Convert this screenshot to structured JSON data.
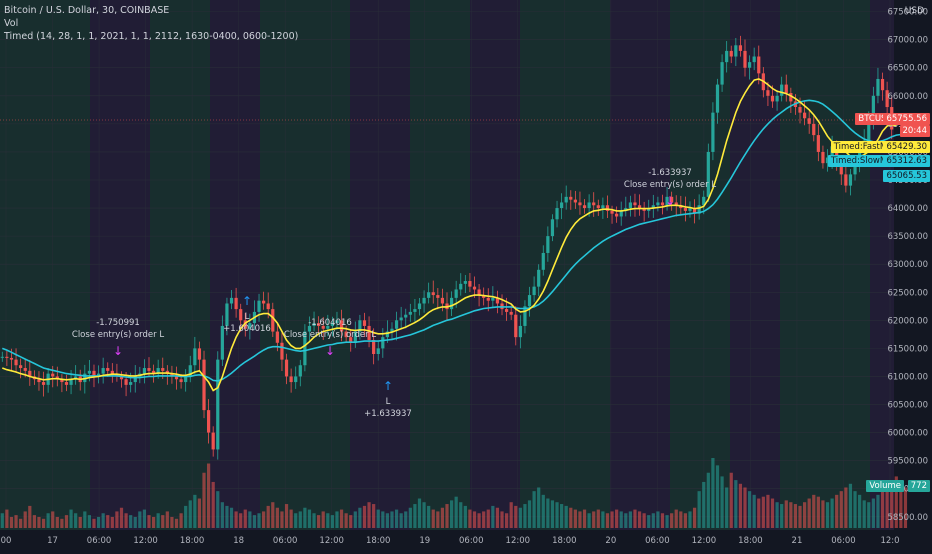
{
  "header": {
    "symbol_line": "Bitcoin / U.S. Dollar, 30, COINBASE",
    "vol_line": "Vol",
    "strategy_line": "Timed (14, 28, 1, 1, 2021, 1, 1, 2112, 1630-0400, 0600-1200)"
  },
  "axis": {
    "currency": "USD",
    "price_ticks": [
      58500,
      59000,
      59500,
      60000,
      60500,
      61000,
      61500,
      62000,
      62500,
      63000,
      63500,
      64000,
      64500,
      65000,
      65500,
      66000,
      66500,
      67000,
      67500
    ],
    "time_ticks": [
      "00",
      "17",
      "06:00",
      "12:00",
      "18:00",
      "18",
      "06:00",
      "12:00",
      "18:00",
      "19",
      "06:00",
      "12:00",
      "18:00",
      "20",
      "06:00",
      "12:00",
      "18:00",
      "21",
      "06:00",
      "12:0"
    ]
  },
  "labels": {
    "btc": {
      "text": "BTCUSD",
      "value": "65755.56",
      "countdown": "20:44",
      "color": "#f05350"
    },
    "fast": {
      "text": "Timed:FastMA",
      "value": "65429.30",
      "color": "#ffeb3b"
    },
    "slow": {
      "text": "Timed:SlowMA",
      "value": "65312.63",
      "value2": "65065.53",
      "color": "#26c6da"
    },
    "volume": {
      "text": "Volume",
      "value": "772",
      "color": "#26a69a"
    }
  },
  "trades": [
    {
      "type": "close",
      "pnl": "-1.750991",
      "label": "Close entry(s) order L"
    },
    {
      "type": "long",
      "label": "L",
      "pnl": "+1.604016"
    },
    {
      "type": "close",
      "pnl": "-1.604016",
      "label": "Close entry(s) order L"
    },
    {
      "type": "long",
      "label": "L",
      "pnl": "+1.633937"
    },
    {
      "type": "close",
      "pnl": "-1.633937",
      "label": "Close entry(s) order L"
    }
  ],
  "chart_data": {
    "type": "candlestick",
    "ylim": [
      58300,
      67600
    ],
    "colors": {
      "up": "#26a69a",
      "down": "#ef5350",
      "fast": "#ffeb3b",
      "slow": "#26c6da"
    },
    "close_series": [
      61350,
      61330,
      61300,
      61200,
      61150,
      61100,
      61000,
      60950,
      60900,
      60850,
      61050,
      61000,
      60950,
      60900,
      60850,
      60950,
      61000,
      60900,
      61050,
      61100,
      61000,
      61050,
      61150,
      61100,
      61050,
      61000,
      60950,
      60850,
      60900,
      61000,
      61050,
      61150,
      61100,
      61050,
      61150,
      61100,
      61050,
      61000,
      60950,
      60900,
      61000,
      61200,
      61500,
      61300,
      60400,
      60000,
      59700,
      61300,
      61900,
      62300,
      62400,
      62200,
      62000,
      61850,
      61950,
      62150,
      62350,
      62300,
      62200,
      61800,
      61600,
      61300,
      61000,
      60900,
      61000,
      61200,
      61800,
      61900,
      61950,
      61900,
      61850,
      61900,
      61950,
      62000,
      61800,
      61700,
      61600,
      61800,
      62000,
      61900,
      61650,
      61400,
      61500,
      61700,
      61800,
      61850,
      62000,
      62050,
      62100,
      62150,
      62200,
      62300,
      62400,
      62500,
      62450,
      62400,
      62300,
      62200,
      62400,
      62550,
      62650,
      62700,
      62600,
      62550,
      62450,
      62400,
      62350,
      62400,
      62300,
      62200,
      62150,
      62100,
      61700,
      61900,
      62250,
      62450,
      62600,
      62900,
      63200,
      63500,
      63800,
      64000,
      64100,
      64200,
      64150,
      64100,
      64050,
      64000,
      64100,
      64050,
      64000,
      64050,
      63950,
      63900,
      63850,
      63950,
      64000,
      64100,
      64050,
      64000,
      63950,
      64000,
      64050,
      64100,
      64050,
      64200,
      64100,
      64050,
      64000,
      63950,
      64000,
      63900,
      64050,
      64200,
      65000,
      65700,
      66200,
      66600,
      66800,
      66700,
      66900,
      66800,
      66500,
      66600,
      66700,
      66400,
      66100,
      66000,
      65900,
      66000,
      66200,
      66050,
      65900,
      65800,
      65700,
      65600,
      65500,
      65300,
      65000,
      64800,
      64900,
      65100,
      64800,
      64600,
      64400,
      64600,
      64800,
      65000,
      65200,
      65600,
      66000,
      66300,
      66100,
      65800,
      65400
    ],
    "fast_ma": [
      61150,
      61120,
      61100,
      61080,
      61050,
      61030,
      61000,
      60980,
      60960,
      60940,
      60950,
      60960,
      60960,
      60950,
      60940,
      60950,
      60960,
      60950,
      60960,
      60980,
      60990,
      61000,
      61020,
      61030,
      61040,
      61040,
      61030,
      61020,
      61010,
      61010,
      61020,
      61040,
      61050,
      61050,
      61060,
      61060,
      61060,
      61050,
      61040,
      61020,
      61020,
      61040,
      61080,
      61100,
      61000,
      60900,
      60750,
      60800,
      61000,
      61250,
      61500,
      61700,
      61850,
      61950,
      62000,
      62050,
      62100,
      62120,
      62120,
      62050,
      61950,
      61800,
      61650,
      61550,
      61500,
      61500,
      61550,
      61620,
      61700,
      61760,
      61800,
      61820,
      61840,
      61860,
      61860,
      61850,
      61830,
      61820,
      61830,
      61830,
      61810,
      61780,
      61760,
      61760,
      61770,
      61790,
      61820,
      61850,
      61880,
      61920,
      61960,
      62010,
      62070,
      62140,
      62190,
      62220,
      62240,
      62240,
      62260,
      62300,
      62350,
      62400,
      62430,
      62450,
      62450,
      62440,
      62430,
      62420,
      62400,
      62370,
      62330,
      62290,
      62200,
      62150,
      62160,
      62200,
      62270,
      62380,
      62520,
      62700,
      62900,
      63100,
      63300,
      63480,
      63620,
      63730,
      63810,
      63860,
      63910,
      63950,
      63960,
      63980,
      63980,
      63970,
      63950,
      63950,
      63960,
      63980,
      63990,
      63990,
      63990,
      63990,
      64000,
      64010,
      64020,
      64040,
      64050,
      64050,
      64040,
      64020,
      64010,
      63990,
      64000,
      64030,
      64150,
      64350,
      64600,
      64900,
      65200,
      65450,
      65700,
      65900,
      66050,
      66180,
      66280,
      66300,
      66260,
      66200,
      66130,
      66080,
      66060,
      66040,
      66000,
      65950,
      65890,
      65820,
      65750,
      65660,
      65550,
      65420,
      65280,
      65180,
      65130,
      65070,
      65000,
      64920,
      64900,
      64910,
      64950,
      65010,
      65100,
      65220,
      65370,
      65460,
      65490,
      65460
    ],
    "slow_ma": [
      61500,
      61470,
      61430,
      61390,
      61350,
      61310,
      61270,
      61230,
      61190,
      61150,
      61130,
      61110,
      61090,
      61070,
      61050,
      61040,
      61030,
      61020,
      61010,
      61010,
      61010,
      61010,
      61010,
      61010,
      61010,
      61010,
      61000,
      60990,
      60980,
      60980,
      60980,
      60990,
      61000,
      61000,
      61010,
      61010,
      61010,
      61010,
      61010,
      61000,
      61000,
      61000,
      61020,
      61030,
      61010,
      60980,
      60930,
      60920,
      60950,
      61000,
      61060,
      61130,
      61200,
      61260,
      61310,
      61360,
      61420,
      61470,
      61510,
      61530,
      61530,
      61520,
      61500,
      61480,
      61460,
      61450,
      61460,
      61480,
      61500,
      61520,
      61540,
      61560,
      61570,
      61590,
      61600,
      61610,
      61610,
      61610,
      61620,
      61630,
      61630,
      61630,
      61630,
      61640,
      61650,
      61660,
      61680,
      61700,
      61720,
      61740,
      61770,
      61800,
      61830,
      61870,
      61910,
      61940,
      61970,
      62000,
      62020,
      62050,
      62080,
      62110,
      62140,
      62170,
      62190,
      62210,
      62220,
      62230,
      62240,
      62240,
      62240,
      62240,
      62220,
      62210,
      62210,
      62220,
      62240,
      62280,
      62340,
      62420,
      62510,
      62610,
      62710,
      62810,
      62910,
      63000,
      63080,
      63150,
      63220,
      63290,
      63350,
      63410,
      63460,
      63500,
      63540,
      63580,
      63620,
      63650,
      63680,
      63710,
      63730,
      63750,
      63770,
      63790,
      63810,
      63830,
      63850,
      63870,
      63880,
      63890,
      63900,
      63910,
      63920,
      63940,
      63990,
      64060,
      64160,
      64280,
      64410,
      64540,
      64680,
      64820,
      64950,
      65080,
      65200,
      65310,
      65410,
      65500,
      65580,
      65650,
      65710,
      65770,
      65820,
      65860,
      65890,
      65910,
      65920,
      65910,
      65890,
      65850,
      65790,
      65720,
      65650,
      65570,
      65490,
      65410,
      65340,
      65280,
      65230,
      65200,
      65180,
      65180,
      65200,
      65230,
      65270,
      65300,
      65310,
      65310
    ],
    "volume": [
      8,
      10,
      6,
      7,
      5,
      9,
      12,
      7,
      6,
      5,
      8,
      9,
      6,
      5,
      7,
      10,
      8,
      6,
      9,
      7,
      5,
      6,
      8,
      7,
      6,
      9,
      11,
      8,
      7,
      6,
      9,
      10,
      7,
      6,
      8,
      7,
      9,
      6,
      5,
      8,
      12,
      15,
      18,
      16,
      30,
      35,
      25,
      20,
      14,
      12,
      11,
      9,
      8,
      10,
      9,
      7,
      8,
      9,
      12,
      14,
      11,
      9,
      13,
      10,
      8,
      9,
      11,
      10,
      8,
      7,
      9,
      8,
      7,
      9,
      10,
      8,
      7,
      9,
      11,
      12,
      14,
      13,
      10,
      9,
      8,
      9,
      10,
      8,
      9,
      11,
      13,
      16,
      14,
      12,
      10,
      9,
      11,
      13,
      15,
      17,
      14,
      12,
      10,
      9,
      8,
      9,
      10,
      12,
      11,
      9,
      8,
      14,
      12,
      11,
      13,
      15,
      20,
      22,
      18,
      16,
      15,
      14,
      13,
      12,
      11,
      10,
      9,
      10,
      8,
      9,
      10,
      9,
      8,
      9,
      10,
      9,
      8,
      9,
      10,
      9,
      8,
      7,
      8,
      9,
      8,
      7,
      8,
      10,
      9,
      8,
      9,
      11,
      20,
      25,
      30,
      38,
      34,
      28,
      22,
      30,
      26,
      24,
      22,
      20,
      18,
      16,
      17,
      18,
      16,
      14,
      13,
      15,
      14,
      13,
      12,
      14,
      16,
      18,
      17,
      15,
      14,
      16,
      18,
      20,
      22,
      24,
      20,
      18,
      15,
      14,
      16,
      18,
      20,
      22,
      25,
      28,
      24,
      22
    ]
  }
}
